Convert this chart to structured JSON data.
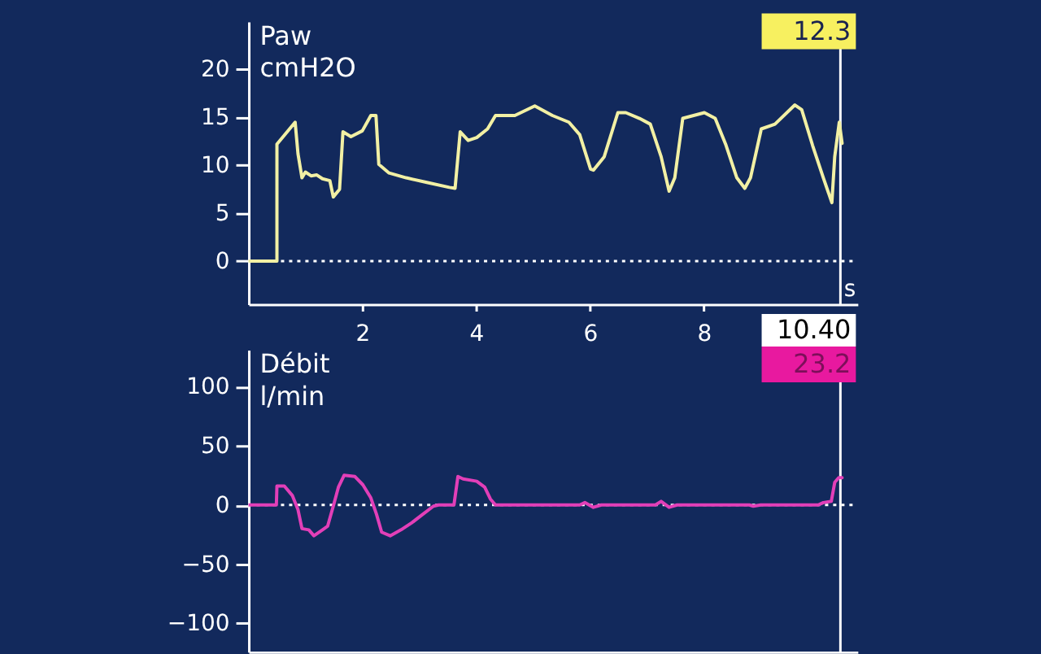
{
  "chart_data": [
    {
      "type": "line",
      "xlabel": "s",
      "ylabel": "Paw\ncmH2O",
      "x": [
        0,
        0.5,
        0.5,
        0.82,
        0.87,
        0.94,
        1.0,
        1.1,
        1.2,
        1.3,
        1.43,
        1.49,
        1.6,
        1.66,
        1.8,
        2.0,
        2.15,
        2.24,
        2.29,
        2.47,
        2.77,
        3.15,
        3.53,
        3.63,
        3.72,
        3.86,
        4.01,
        4.2,
        4.34,
        4.68,
        5.03,
        5.34,
        5.63,
        5.82,
        6.01,
        6.06,
        6.25,
        6.49,
        6.63,
        6.87,
        7.06,
        7.25,
        7.39,
        7.49,
        7.63,
        8.01,
        8.2,
        8.39,
        8.58,
        8.72,
        8.82,
        9.01,
        9.25,
        9.6,
        9.72,
        9.91,
        10.1,
        10.25,
        10.3,
        10.38,
        10.43
      ],
      "series": [
        {
          "color": "#f2f0a4",
          "values": [
            0,
            0,
            12.2,
            14.5,
            11.2,
            8.7,
            9.3,
            8.9,
            9.0,
            8.6,
            8.4,
            6.7,
            7.5,
            13.5,
            13.0,
            13.6,
            15.2,
            15.2,
            10.1,
            9.2,
            8.7,
            8.2,
            7.7,
            7.6,
            13.5,
            12.6,
            12.9,
            13.8,
            15.2,
            15.2,
            16.2,
            15.2,
            14.5,
            13.2,
            9.6,
            9.5,
            10.9,
            15.5,
            15.5,
            14.9,
            14.3,
            10.9,
            7.3,
            8.7,
            14.9,
            15.5,
            14.9,
            12.1,
            8.7,
            7.6,
            8.7,
            13.8,
            14.3,
            16.3,
            15.8,
            12.1,
            8.7,
            6.1,
            10.9,
            14.5,
            12.3
          ]
        }
      ],
      "xlim": [
        0,
        10.7
      ],
      "ylim": [
        -4.5,
        25
      ],
      "xticks": [
        2,
        4,
        6,
        8
      ],
      "yticks": [
        0,
        5,
        10,
        15,
        20
      ],
      "ref_lines": [
        {
          "axis": "y",
          "value": 0,
          "line_style": "dotted",
          "color": "#ffffff"
        },
        {
          "axis": "x",
          "value": 10.4,
          "label": "10.40",
          "color": "#ffffff"
        }
      ],
      "annotations": [
        "12.3"
      ]
    },
    {
      "type": "line",
      "ylabel": "Débit\nl/min",
      "x": [
        0,
        0.49,
        0.5,
        0.63,
        0.77,
        0.87,
        0.94,
        1.06,
        1.15,
        1.3,
        1.39,
        1.49,
        1.58,
        1.68,
        1.87,
        2.01,
        2.15,
        2.25,
        2.34,
        2.49,
        2.68,
        2.87,
        3.06,
        3.25,
        3.34,
        3.61,
        3.68,
        3.77,
        4.01,
        4.15,
        4.25,
        4.34,
        5.82,
        5.91,
        6.06,
        6.2,
        7.15,
        7.25,
        7.39,
        7.53,
        8.8,
        8.87,
        9.0,
        10.01,
        10.1,
        10.24,
        10.3,
        10.37,
        10.43
      ],
      "series": [
        {
          "color": "#e23fb8",
          "values": [
            0,
            0,
            16,
            16,
            8,
            -4,
            -20,
            -21,
            -26,
            -21,
            -18,
            -1,
            15,
            25,
            24,
            17,
            6,
            -8,
            -23,
            -26,
            -21,
            -15,
            -8,
            -1,
            0,
            0,
            24,
            22,
            20,
            15,
            5,
            0,
            0,
            2,
            -2,
            0,
            0,
            3,
            -2,
            0,
            0,
            -1,
            0,
            0,
            2,
            3,
            19,
            23,
            23
          ]
        }
      ],
      "xlim": [
        0,
        10.7
      ],
      "ylim": [
        -124,
        131
      ],
      "yticks": [
        -100,
        -50,
        0,
        50,
        100
      ],
      "tick_labels": "y",
      "ref_lines": [
        {
          "axis": "y",
          "value": 0,
          "line_style": "dotted",
          "color": "#ffffff"
        },
        {
          "axis": "x",
          "value": 10.4,
          "color": "#ffffff"
        }
      ],
      "annotations": [
        "23.2"
      ]
    }
  ]
}
